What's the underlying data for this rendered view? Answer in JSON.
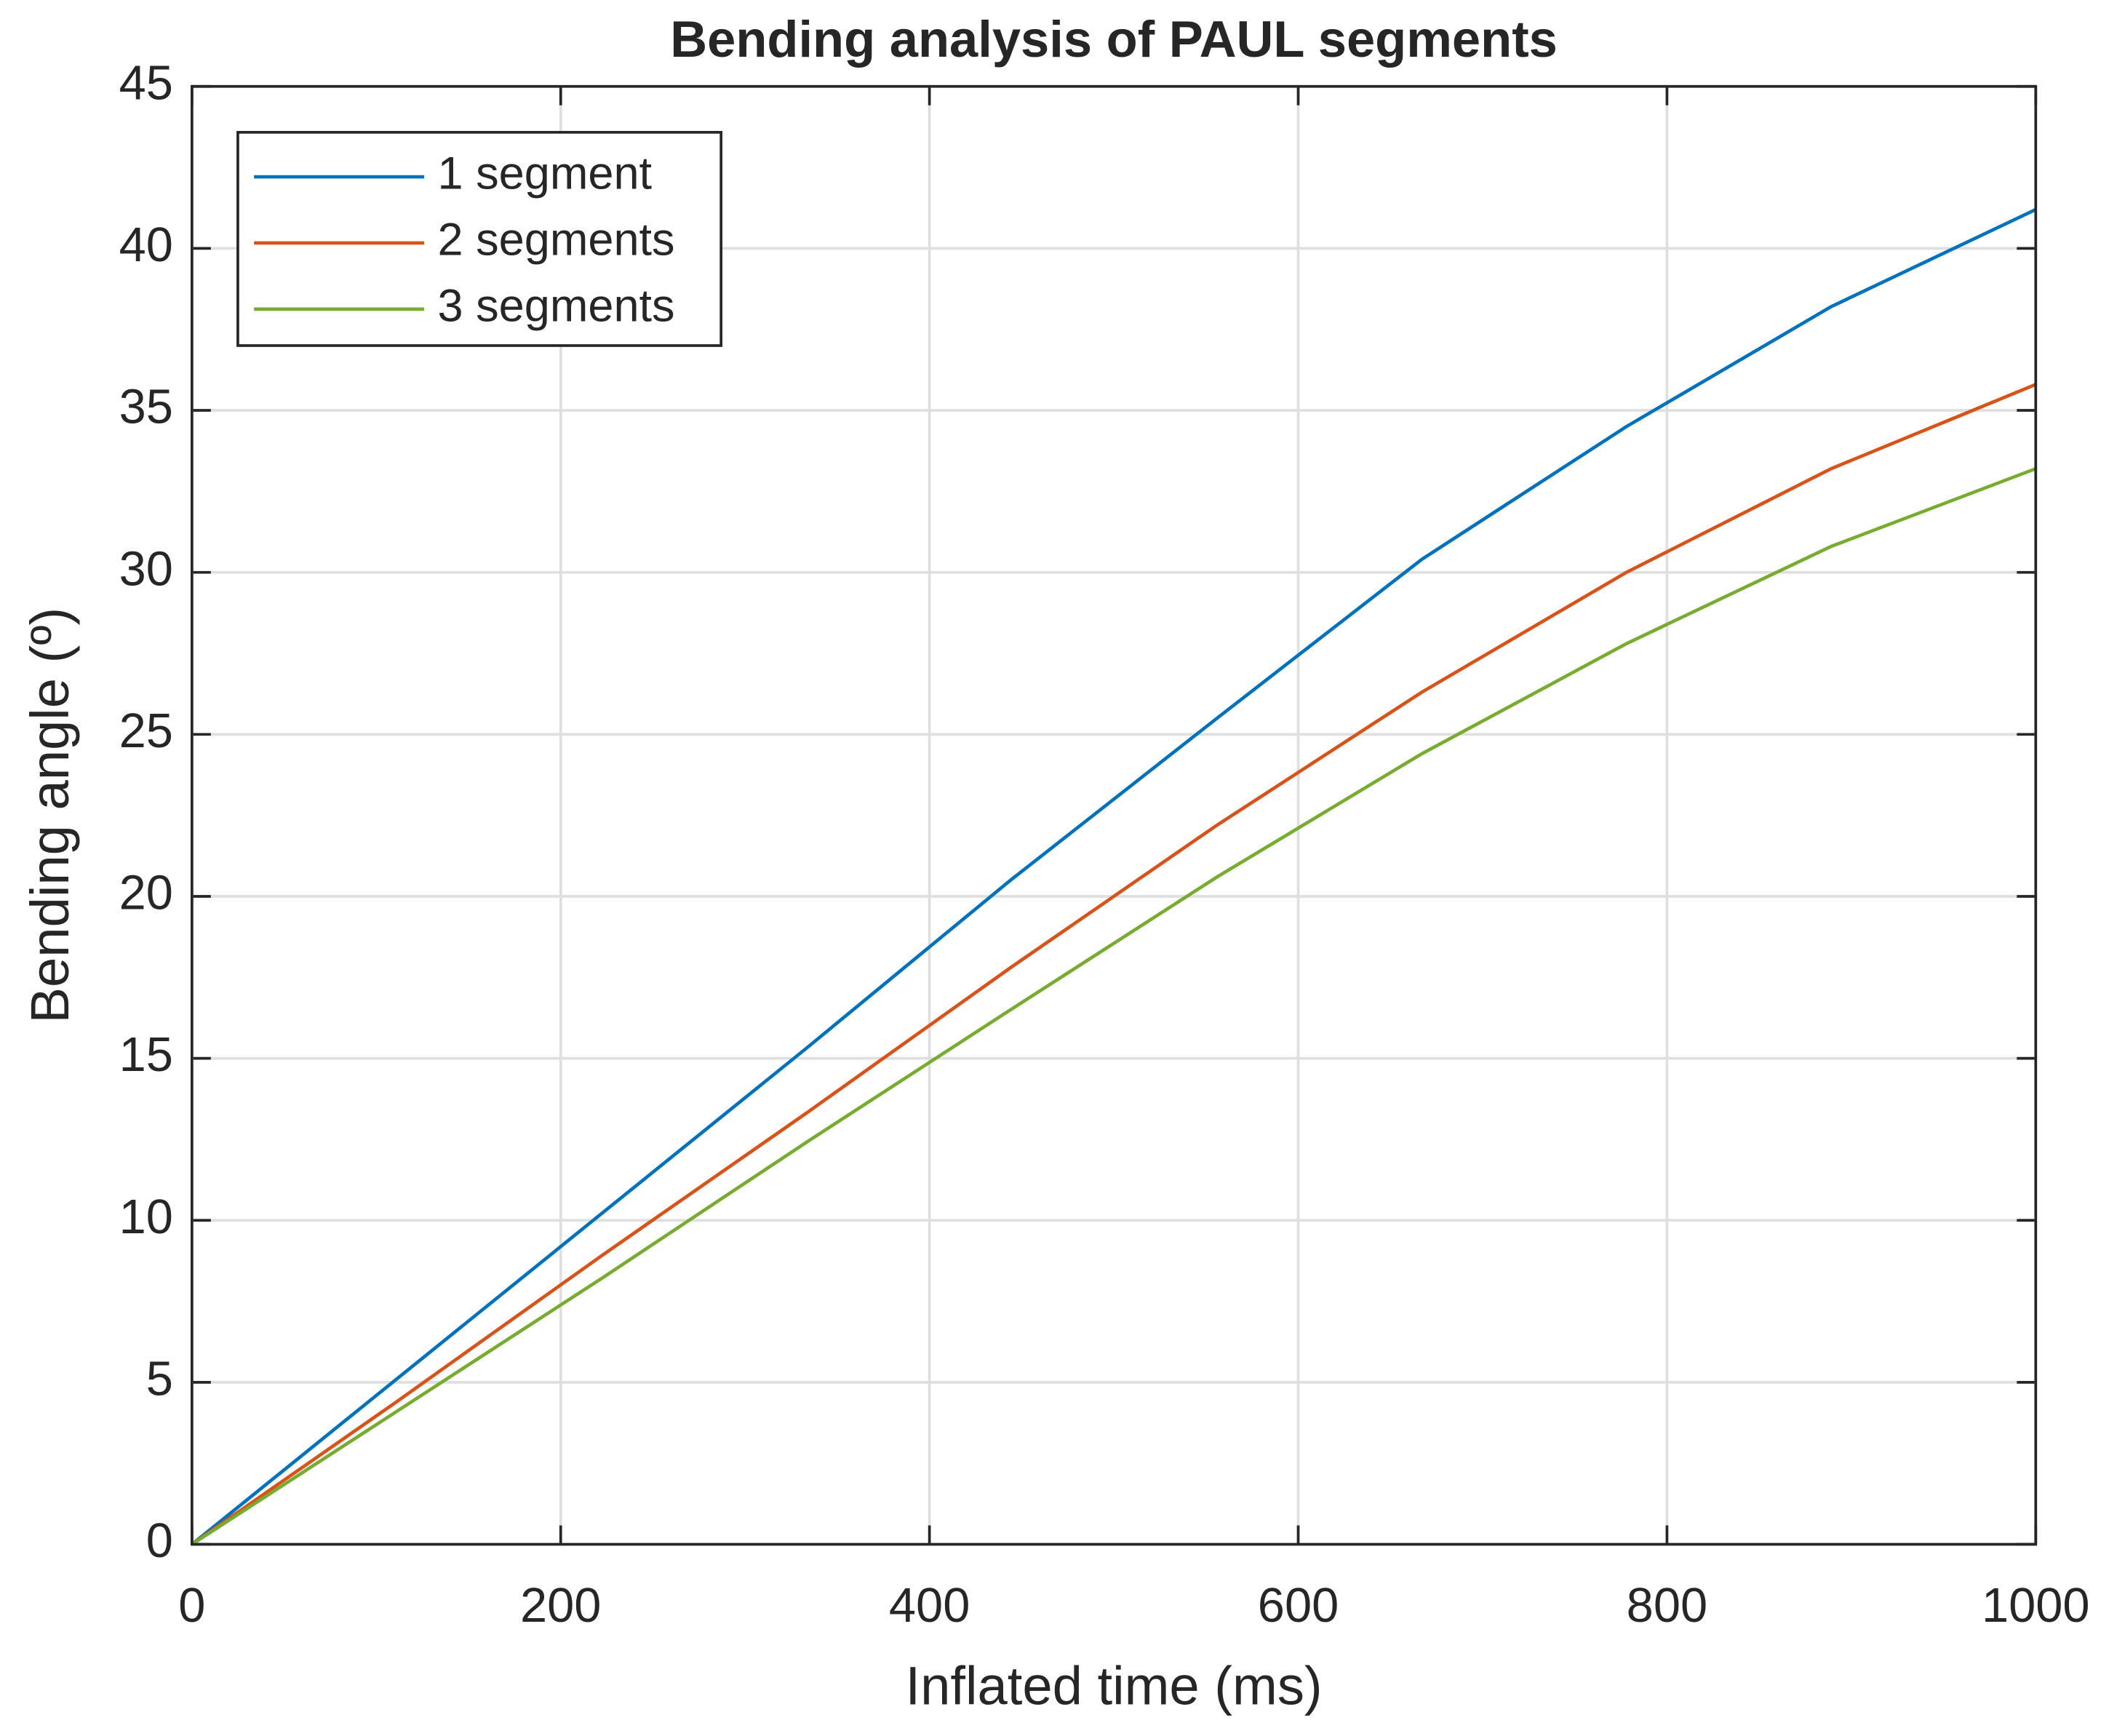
{
  "chart_data": {
    "type": "line",
    "title": "Bending analysis of PAUL segments",
    "xlabel": "Inflated time (ms)",
    "ylabel": "Bending angle (º)",
    "x": [
      0,
      111,
      222,
      333,
      444,
      556,
      667,
      778,
      889,
      1000
    ],
    "series": [
      {
        "name": "1 segment",
        "color": "#0072bd",
        "values": [
          0,
          5.1,
          10.2,
          15.3,
          20.5,
          25.5,
          30.4,
          34.5,
          38.2,
          41.2
        ]
      },
      {
        "name": "2 segments",
        "color": "#d95319",
        "values": [
          0,
          4.4,
          8.9,
          13.3,
          17.8,
          22.2,
          26.3,
          30.0,
          33.2,
          35.8
        ]
      },
      {
        "name": "3 segments",
        "color": "#77ac30",
        "values": [
          0,
          4.1,
          8.2,
          12.4,
          16.5,
          20.6,
          24.4,
          27.8,
          30.8,
          33.2
        ]
      }
    ],
    "xlim": [
      0,
      1000
    ],
    "xticks": [
      0,
      200,
      400,
      600,
      800,
      1000
    ],
    "ylim": [
      0,
      45
    ],
    "yticks": [
      0,
      5,
      10,
      15,
      20,
      25,
      30,
      35,
      40,
      45
    ],
    "grid": true,
    "legend": "top-left"
  }
}
